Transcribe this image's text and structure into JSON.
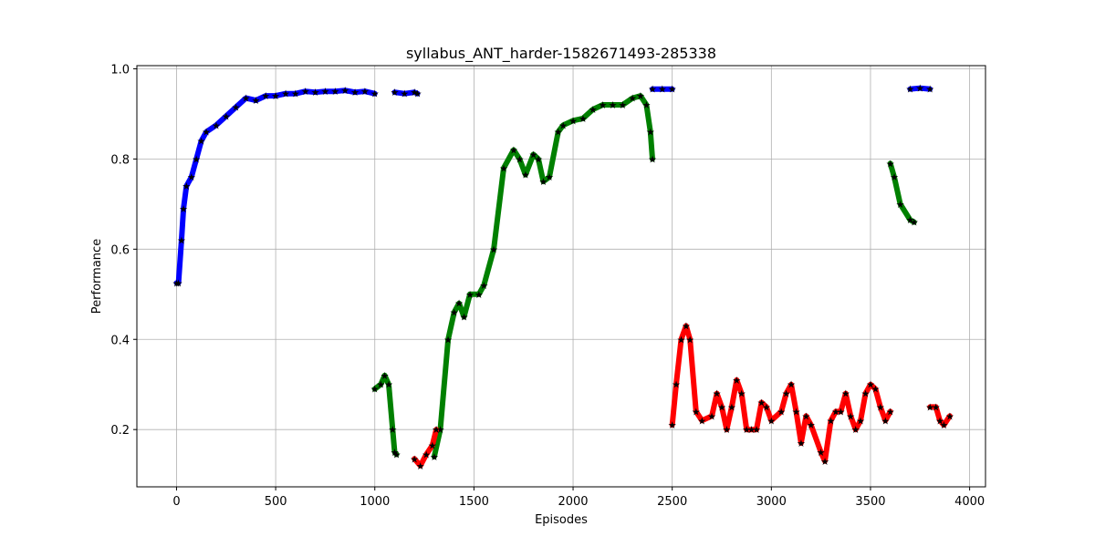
{
  "chart_data": {
    "type": "scatter",
    "title": "syllabus_ANT_harder-1582671493-285338",
    "xlabel": "Episodes",
    "ylabel": "Performance",
    "xlim": [
      -200,
      4080
    ],
    "ylim": [
      0.073,
      1.007
    ],
    "xticks": [
      0,
      500,
      1000,
      1500,
      2000,
      2500,
      3000,
      3500,
      4000
    ],
    "yticks": [
      0.2,
      0.4,
      0.6,
      0.8,
      1.0
    ],
    "ytick_labels": [
      "0.2",
      "0.4",
      "0.6",
      "0.8",
      "1.0"
    ],
    "grid": true,
    "marker": "star",
    "series": [
      {
        "color": "#0000ff",
        "segments": [
          [
            [
              0,
              0.525
            ],
            [
              10,
              0.525
            ],
            [
              25,
              0.62
            ],
            [
              35,
              0.69
            ],
            [
              50,
              0.74
            ],
            [
              75,
              0.76
            ],
            [
              100,
              0.8
            ],
            [
              125,
              0.84
            ],
            [
              150,
              0.86
            ],
            [
              200,
              0.875
            ],
            [
              250,
              0.895
            ],
            [
              300,
              0.915
            ],
            [
              350,
              0.935
            ],
            [
              400,
              0.93
            ],
            [
              450,
              0.94
            ],
            [
              500,
              0.94
            ],
            [
              550,
              0.945
            ],
            [
              600,
              0.945
            ],
            [
              650,
              0.95
            ],
            [
              700,
              0.948
            ],
            [
              750,
              0.95
            ],
            [
              800,
              0.95
            ],
            [
              850,
              0.952
            ],
            [
              900,
              0.948
            ],
            [
              950,
              0.95
            ],
            [
              1000,
              0.945
            ]
          ],
          [
            [
              1100,
              0.948
            ],
            [
              1150,
              0.945
            ],
            [
              1200,
              0.948
            ],
            [
              1215,
              0.945
            ]
          ],
          [
            [
              2400,
              0.955
            ],
            [
              2450,
              0.955
            ],
            [
              2500,
              0.955
            ]
          ],
          [
            [
              3700,
              0.955
            ],
            [
              3750,
              0.957
            ],
            [
              3800,
              0.955
            ]
          ]
        ]
      },
      {
        "color": "#008000",
        "segments": [
          [
            [
              1000,
              0.29
            ],
            [
              1030,
              0.3
            ],
            [
              1050,
              0.32
            ],
            [
              1070,
              0.3
            ],
            [
              1090,
              0.2
            ],
            [
              1100,
              0.15
            ],
            [
              1110,
              0.145
            ]
          ],
          [
            [
              1300,
              0.14
            ],
            [
              1330,
              0.2
            ],
            [
              1370,
              0.4
            ],
            [
              1400,
              0.46
            ],
            [
              1425,
              0.48
            ],
            [
              1450,
              0.45
            ],
            [
              1480,
              0.5
            ],
            [
              1525,
              0.5
            ],
            [
              1550,
              0.52
            ],
            [
              1600,
              0.6
            ],
            [
              1650,
              0.78
            ],
            [
              1700,
              0.82
            ],
            [
              1730,
              0.8
            ],
            [
              1760,
              0.765
            ],
            [
              1800,
              0.81
            ],
            [
              1825,
              0.8
            ],
            [
              1850,
              0.75
            ],
            [
              1880,
              0.76
            ],
            [
              1925,
              0.86
            ],
            [
              1950,
              0.875
            ],
            [
              2000,
              0.885
            ],
            [
              2050,
              0.89
            ],
            [
              2100,
              0.91
            ],
            [
              2150,
              0.92
            ],
            [
              2200,
              0.92
            ],
            [
              2250,
              0.92
            ],
            [
              2300,
              0.935
            ],
            [
              2340,
              0.94
            ],
            [
              2370,
              0.92
            ],
            [
              2390,
              0.86
            ],
            [
              2400,
              0.8
            ]
          ],
          [
            [
              3600,
              0.79
            ],
            [
              3620,
              0.76
            ],
            [
              3650,
              0.7
            ],
            [
              3700,
              0.665
            ],
            [
              3720,
              0.66
            ]
          ]
        ]
      },
      {
        "color": "#ff0000",
        "segments": [
          [
            [
              1200,
              0.135
            ],
            [
              1230,
              0.12
            ],
            [
              1260,
              0.145
            ],
            [
              1290,
              0.165
            ],
            [
              1310,
              0.2
            ]
          ],
          [
            [
              2500,
              0.21
            ],
            [
              2520,
              0.3
            ],
            [
              2545,
              0.4
            ],
            [
              2570,
              0.43
            ],
            [
              2590,
              0.4
            ],
            [
              2620,
              0.24
            ],
            [
              2650,
              0.22
            ],
            [
              2700,
              0.23
            ],
            [
              2725,
              0.28
            ],
            [
              2750,
              0.25
            ],
            [
              2775,
              0.2
            ],
            [
              2800,
              0.25
            ],
            [
              2825,
              0.31
            ],
            [
              2850,
              0.28
            ],
            [
              2875,
              0.2
            ],
            [
              2900,
              0.2
            ],
            [
              2925,
              0.2
            ],
            [
              2950,
              0.26
            ],
            [
              2975,
              0.25
            ],
            [
              3000,
              0.22
            ],
            [
              3050,
              0.24
            ],
            [
              3075,
              0.28
            ],
            [
              3100,
              0.3
            ],
            [
              3125,
              0.24
            ],
            [
              3150,
              0.17
            ],
            [
              3175,
              0.23
            ],
            [
              3200,
              0.21
            ],
            [
              3250,
              0.15
            ],
            [
              3270,
              0.13
            ],
            [
              3300,
              0.22
            ],
            [
              3325,
              0.24
            ],
            [
              3350,
              0.24
            ],
            [
              3375,
              0.28
            ],
            [
              3400,
              0.23
            ],
            [
              3425,
              0.2
            ],
            [
              3450,
              0.22
            ],
            [
              3475,
              0.28
            ],
            [
              3500,
              0.3
            ],
            [
              3525,
              0.29
            ],
            [
              3550,
              0.25
            ],
            [
              3575,
              0.22
            ],
            [
              3600,
              0.24
            ]
          ],
          [
            [
              3800,
              0.25
            ],
            [
              3830,
              0.25
            ],
            [
              3850,
              0.22
            ],
            [
              3870,
              0.21
            ],
            [
              3900,
              0.23
            ]
          ]
        ]
      }
    ]
  }
}
